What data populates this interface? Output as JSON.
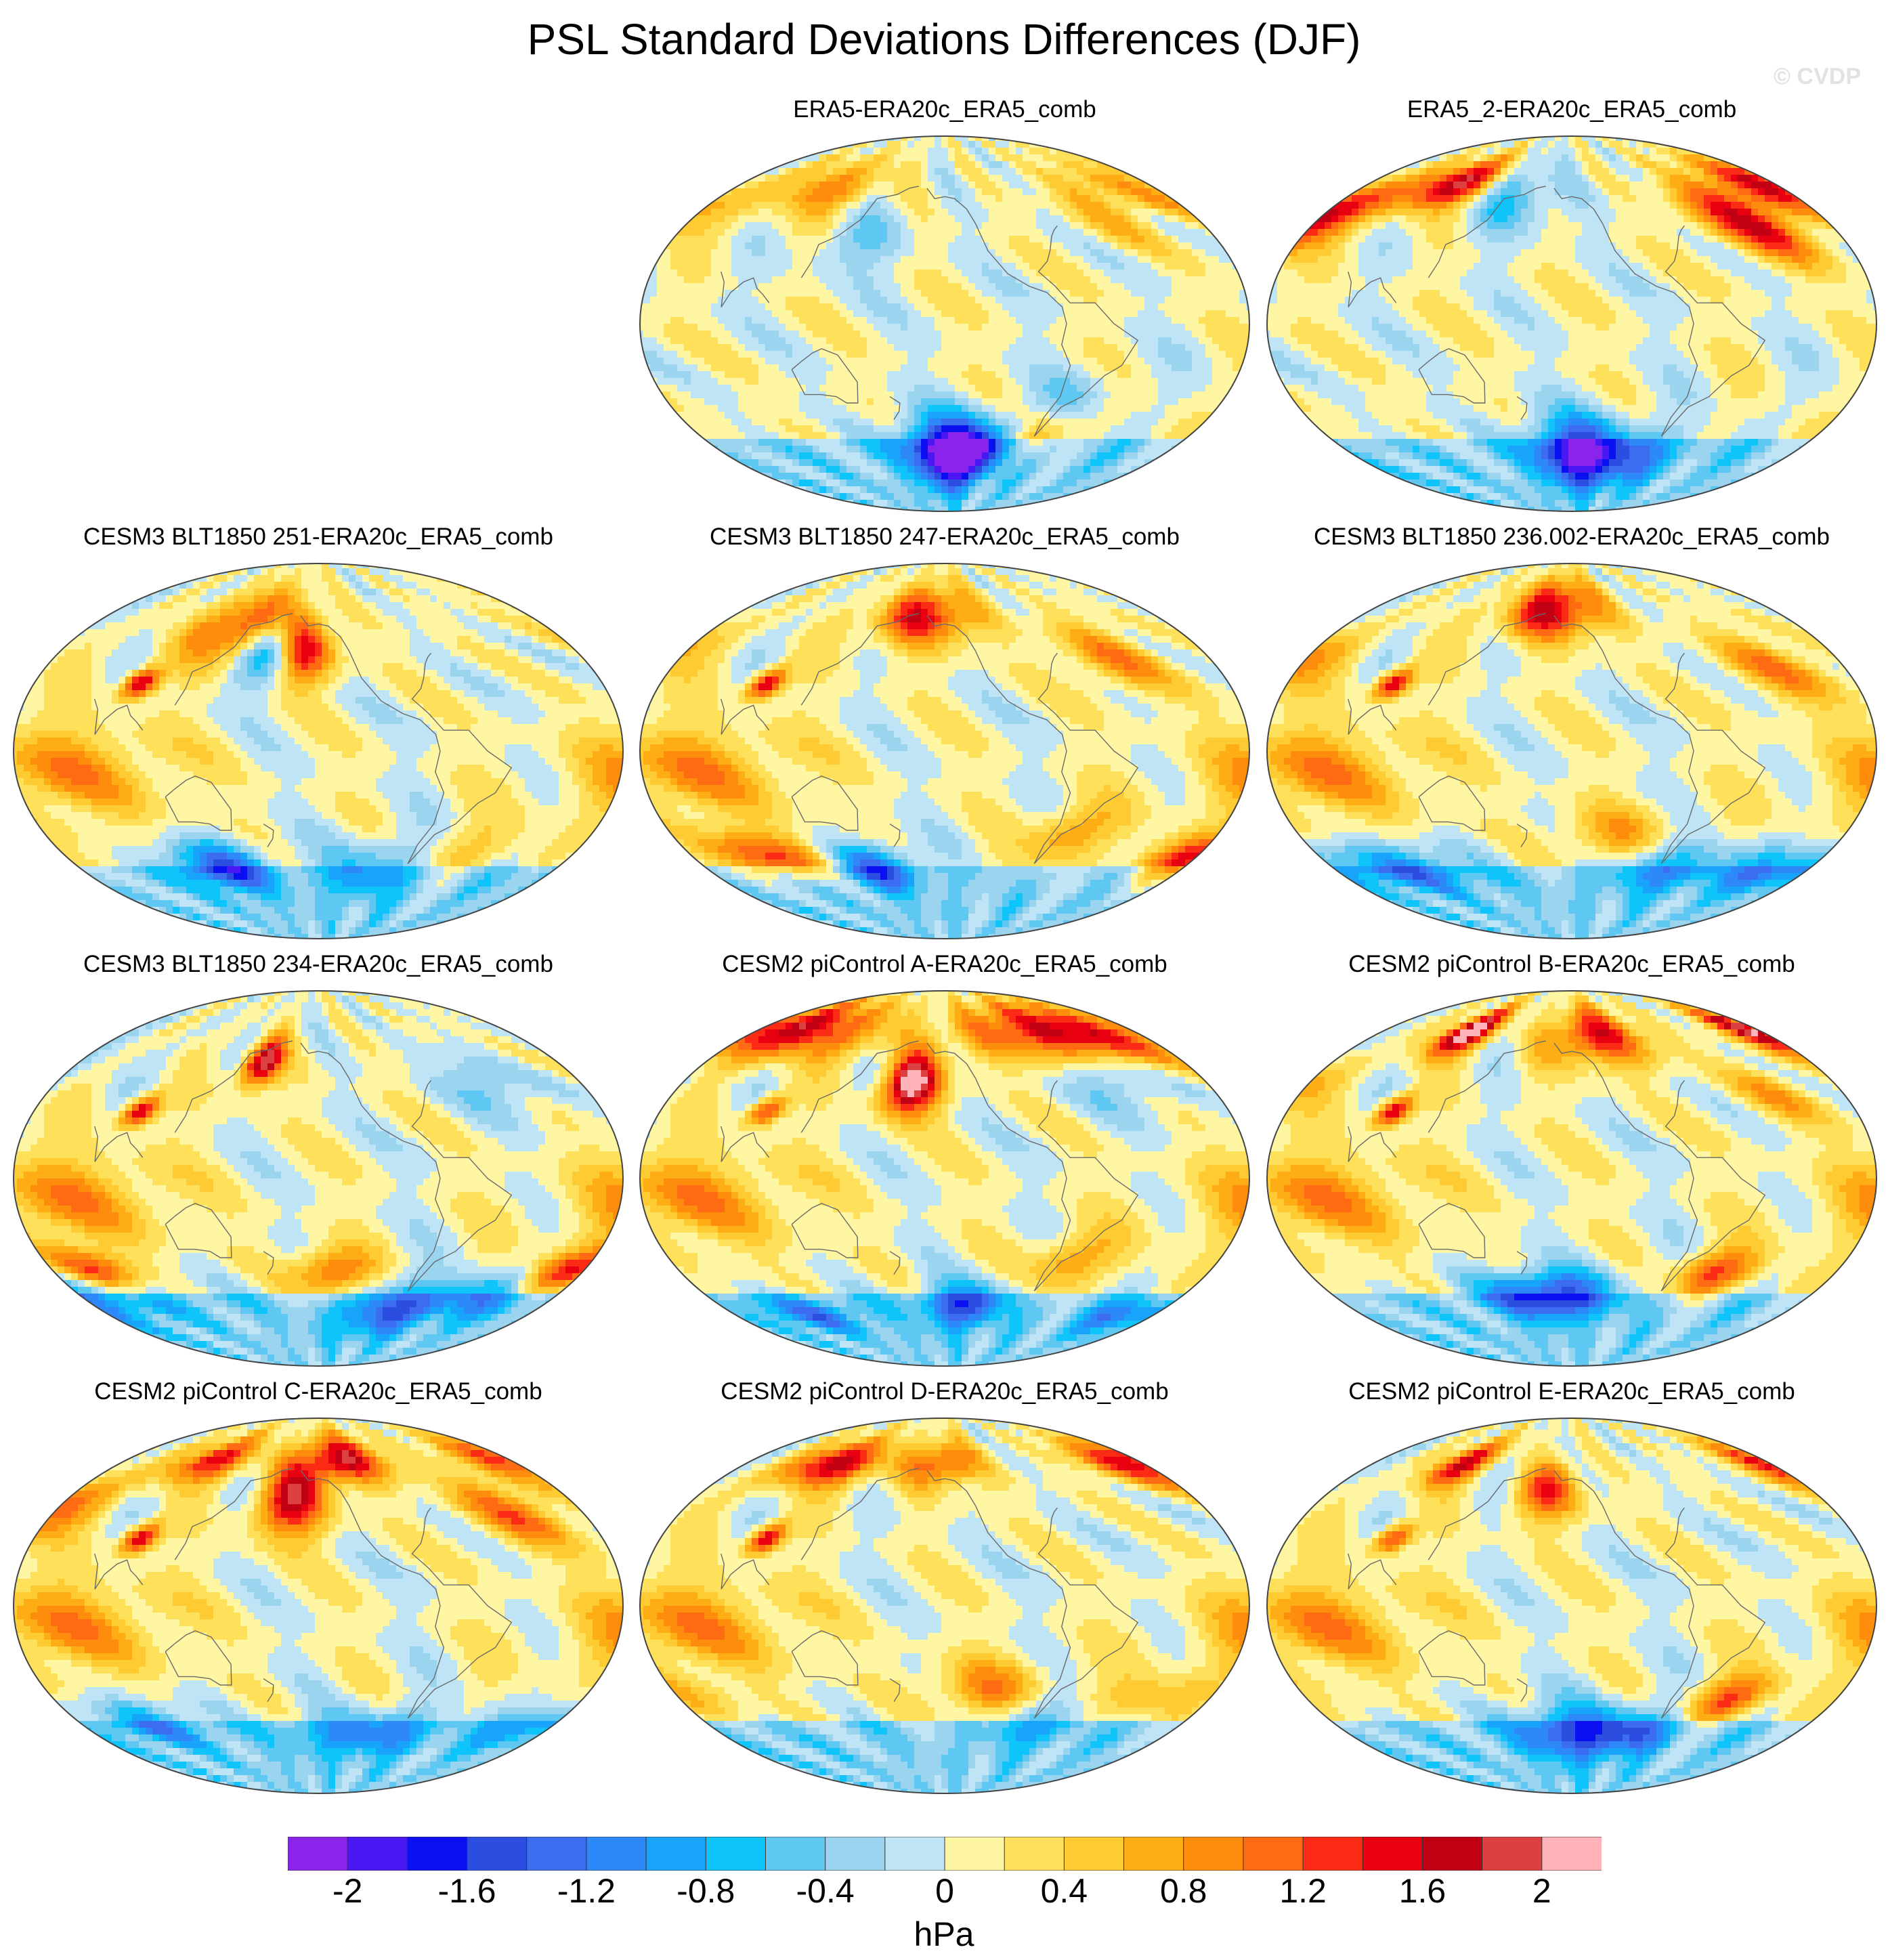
{
  "figure": {
    "title": "PSL Standard Deviations Differences (DJF)",
    "watermark": "© CVDP"
  },
  "panels": [
    {
      "id": "p1",
      "row": 0,
      "col": 1,
      "label": "ERA5-ERA20c_ERA5_comb",
      "blobs": [
        [
          -150,
          -60,
          30,
          12,
          -1.6
        ],
        [
          -120,
          -62,
          30,
          10,
          -1.2
        ],
        [
          -70,
          -55,
          15,
          10,
          0.8
        ],
        [
          80,
          65,
          40,
          10,
          0.8
        ],
        [
          -10,
          55,
          20,
          12,
          0.6
        ],
        [
          -60,
          -35,
          20,
          10,
          -0.4
        ],
        [
          150,
          40,
          25,
          12,
          -0.4
        ]
      ]
    },
    {
      "id": "p2",
      "row": 0,
      "col": 2,
      "label": "ERA5_2-ERA20c_ERA5_comb",
      "blobs": [
        [
          -150,
          -60,
          30,
          12,
          -1.4
        ],
        [
          -100,
          -65,
          40,
          10,
          -1.0
        ],
        [
          80,
          68,
          25,
          8,
          1.6
        ],
        [
          0,
          45,
          20,
          12,
          1.0
        ],
        [
          -20,
          55,
          25,
          12,
          0.8
        ],
        [
          40,
          60,
          30,
          10,
          0.6
        ],
        [
          160,
          60,
          30,
          12,
          -0.6
        ]
      ]
    },
    {
      "id": "p3",
      "row": 1,
      "col": 0,
      "label": "CESM3 BLT1850 251-ERA20c_ERA5_comb",
      "blobs": [
        [
          170,
          50,
          15,
          12,
          -1.4
        ],
        [
          150,
          60,
          40,
          12,
          1.4
        ],
        [
          -160,
          45,
          15,
          10,
          1.2
        ],
        [
          90,
          32,
          8,
          5,
          1.8
        ],
        [
          60,
          -10,
          40,
          15,
          0.8
        ],
        [
          120,
          -55,
          30,
          8,
          -1.4
        ],
        [
          -90,
          -55,
          40,
          10,
          -0.8
        ],
        [
          -40,
          -50,
          30,
          10,
          0.6
        ]
      ]
    },
    {
      "id": "p4",
      "row": 1,
      "col": 1,
      "label": "CESM3 BLT1850 247-ERA20c_ERA5_comb",
      "blobs": [
        [
          -170,
          65,
          40,
          10,
          1.4
        ],
        [
          90,
          32,
          8,
          5,
          1.8
        ],
        [
          60,
          -10,
          40,
          15,
          0.8
        ],
        [
          60,
          -50,
          30,
          8,
          1.2
        ],
        [
          150,
          -55,
          25,
          8,
          -1.2
        ],
        [
          -60,
          -40,
          20,
          10,
          0.8
        ],
        [
          -20,
          45,
          25,
          12,
          0.8
        ]
      ]
    },
    {
      "id": "p5",
      "row": 1,
      "col": 2,
      "label": "CESM3 BLT1850 236.002-ERA20c_ERA5_comb",
      "blobs": [
        [
          -170,
          68,
          40,
          10,
          1.6
        ],
        [
          90,
          32,
          8,
          5,
          1.8
        ],
        [
          60,
          -10,
          40,
          15,
          0.8
        ],
        [
          0,
          40,
          25,
          12,
          0.8
        ],
        [
          60,
          -55,
          40,
          8,
          -1.0
        ],
        [
          -60,
          -55,
          40,
          8,
          -0.8
        ],
        [
          -120,
          -40,
          30,
          10,
          0.6
        ]
      ]
    },
    {
      "id": "p6",
      "row": 2,
      "col": 0,
      "label": "CESM3 BLT1850 234-ERA20c_ERA5_comb",
      "blobs": [
        [
          160,
          55,
          12,
          8,
          2.0
        ],
        [
          90,
          32,
          8,
          5,
          1.8
        ],
        [
          40,
          -45,
          20,
          8,
          1.4
        ],
        [
          -140,
          -45,
          20,
          8,
          1.2
        ],
        [
          0,
          -55,
          60,
          8,
          -0.8
        ],
        [
          -80,
          -65,
          40,
          8,
          -0.8
        ],
        [
          60,
          -10,
          40,
          15,
          0.8
        ],
        [
          -20,
          45,
          20,
          10,
          -0.6
        ]
      ]
    },
    {
      "id": "p7",
      "row": 2,
      "col": 1,
      "label": "CESM2 piControl A-ERA20c_ERA5_comb",
      "blobs": [
        [
          -175,
          45,
          15,
          10,
          2.2
        ],
        [
          0,
          70,
          90,
          10,
          1.6
        ],
        [
          90,
          32,
          8,
          5,
          1.4
        ],
        [
          60,
          -10,
          40,
          15,
          0.8
        ],
        [
          -130,
          -60,
          30,
          8,
          -1.2
        ],
        [
          60,
          -65,
          40,
          6,
          -0.8
        ],
        [
          -60,
          -40,
          20,
          10,
          0.8
        ],
        [
          -20,
          45,
          20,
          10,
          -0.6
        ]
      ]
    },
    {
      "id": "p8",
      "row": 2,
      "col": 2,
      "label": "CESM2 piControl B-ERA20c_ERA5_comb",
      "blobs": [
        [
          80,
          70,
          20,
          8,
          2.2
        ],
        [
          -120,
          68,
          40,
          10,
          1.4
        ],
        [
          90,
          32,
          8,
          5,
          1.8
        ],
        [
          -170,
          -55,
          40,
          8,
          -1.6
        ],
        [
          -40,
          -45,
          20,
          8,
          1.2
        ],
        [
          60,
          -10,
          40,
          15,
          0.8
        ],
        [
          0,
          40,
          20,
          10,
          0.6
        ]
      ]
    },
    {
      "id": "p9",
      "row": 3,
      "col": 0,
      "label": "CESM2 piControl C-ERA20c_ERA5_comb",
      "blobs": [
        [
          -170,
          50,
          20,
          12,
          1.6
        ],
        [
          -120,
          70,
          40,
          8,
          1.6
        ],
        [
          80,
          70,
          30,
          8,
          1.4
        ],
        [
          0,
          45,
          25,
          12,
          1.0
        ],
        [
          90,
          32,
          8,
          5,
          1.8
        ],
        [
          60,
          -10,
          40,
          15,
          0.8
        ],
        [
          -100,
          -60,
          50,
          8,
          -0.8
        ],
        [
          60,
          -55,
          30,
          8,
          -0.8
        ]
      ]
    },
    {
      "id": "p10",
      "row": 3,
      "col": 1,
      "label": "CESM2 piControl D-ERA20c_ERA5_comb",
      "blobs": [
        [
          80,
          68,
          40,
          8,
          1.6
        ],
        [
          -150,
          68,
          30,
          8,
          1.2
        ],
        [
          90,
          32,
          8,
          5,
          1.8
        ],
        [
          60,
          -10,
          40,
          15,
          0.8
        ],
        [
          -120,
          -40,
          30,
          10,
          0.8
        ],
        [
          -60,
          -55,
          40,
          8,
          -0.6
        ],
        [
          0,
          -45,
          30,
          8,
          0.6
        ]
      ]
    },
    {
      "id": "p11",
      "row": 3,
      "col": 2,
      "label": "CESM2 piControl E-ERA20c_ERA5_comb",
      "blobs": [
        [
          80,
          68,
          20,
          8,
          1.6
        ],
        [
          -170,
          55,
          20,
          10,
          1.2
        ],
        [
          90,
          32,
          8,
          5,
          1.4
        ],
        [
          -150,
          -60,
          40,
          10,
          -1.2
        ],
        [
          -80,
          -60,
          30,
          8,
          -0.8
        ],
        [
          -30,
          -45,
          20,
          8,
          1.2
        ],
        [
          60,
          -10,
          40,
          15,
          0.8
        ]
      ]
    }
  ],
  "colorbar": {
    "units": "hPa",
    "levels": [
      -2.2,
      -2.0,
      -1.8,
      -1.6,
      -1.4,
      -1.2,
      -1.0,
      -0.8,
      -0.6,
      -0.4,
      -0.2,
      0,
      0.2,
      0.4,
      0.6,
      0.8,
      1.0,
      1.2,
      1.4,
      1.6,
      1.8,
      2.0,
      2.2
    ],
    "colors": [
      "#8b24eb",
      "#4a18f2",
      "#0a10f0",
      "#2c4ee0",
      "#3c6cf0",
      "#2d88f8",
      "#18a4fb",
      "#0ec4fb",
      "#5ec8f2",
      "#9ad4ef",
      "#bfe4f6",
      "#fef6a3",
      "#fee05a",
      "#fecb33",
      "#feae14",
      "#fe8c0d",
      "#fe6b13",
      "#fc2b16",
      "#e80010",
      "#c10014",
      "#dd4040",
      "#feb4b8"
    ],
    "labels": [
      "-2",
      "-1.6",
      "-1.2",
      "-0.8",
      "-0.4",
      "0",
      "0.4",
      "0.8",
      "1.2",
      "1.6",
      "2"
    ]
  }
}
